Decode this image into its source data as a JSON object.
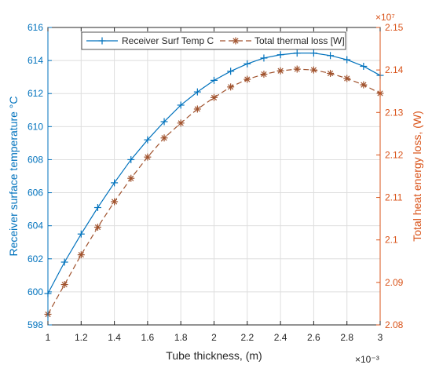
{
  "chart_data": {
    "type": "line",
    "xlabel": "Tube thickness, (m)",
    "x_multiplier": "×10⁻³",
    "xlim": [
      1,
      3
    ],
    "xticks": [
      "1",
      "1.2",
      "1.4",
      "1.6",
      "1.8",
      "2",
      "2.2",
      "2.4",
      "2.6",
      "2.8",
      "3"
    ],
    "x": [
      1.0,
      1.1,
      1.2,
      1.3,
      1.4,
      1.5,
      1.6,
      1.7,
      1.8,
      1.9,
      2.0,
      2.1,
      2.2,
      2.3,
      2.4,
      2.5,
      2.6,
      2.7,
      2.8,
      2.9,
      3.0
    ],
    "left_axis": {
      "label": "Receiver surface temperature °C",
      "ylim": [
        598,
        616
      ],
      "ticks": [
        "598",
        "600",
        "602",
        "604",
        "606",
        "608",
        "610",
        "612",
        "614",
        "616"
      ],
      "color": "#0072BD"
    },
    "right_axis": {
      "label": "Total heat energy loss, (W)",
      "multiplier": "×10⁷",
      "ylim": [
        2.08,
        2.15
      ],
      "ticks": [
        "2.08",
        "2.09",
        "2.1",
        "2.11",
        "2.12",
        "2.13",
        "2.14",
        "2.15"
      ],
      "color": "#D95319"
    },
    "grid": true,
    "legend_position": "top",
    "series": [
      {
        "name": "Receiver Surf Temp C",
        "axis": "left",
        "color": "#0072BD",
        "line": "solid",
        "marker": "plus",
        "values": [
          599.9,
          601.8,
          603.5,
          605.1,
          606.6,
          608.0,
          609.2,
          610.3,
          611.3,
          612.1,
          612.8,
          613.35,
          613.8,
          614.15,
          614.35,
          614.45,
          614.45,
          614.3,
          614.05,
          613.65,
          613.1
        ]
      },
      {
        "name": "Total thermal loss [W]",
        "axis": "right",
        "color": "#A0522D",
        "line": "dashed",
        "marker": "asterisk",
        "values": [
          2.0825,
          2.0895,
          2.0965,
          2.103,
          2.109,
          2.1145,
          2.1195,
          2.124,
          2.1275,
          2.1308,
          2.1335,
          2.136,
          2.1378,
          2.139,
          2.1398,
          2.1402,
          2.14,
          2.1392,
          2.138,
          2.1365,
          2.1345
        ]
      }
    ]
  }
}
